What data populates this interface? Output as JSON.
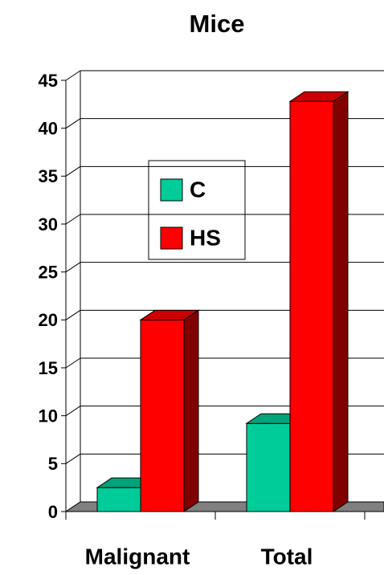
{
  "chart_data": {
    "type": "bar3d",
    "title": "Mice",
    "categories": [
      "Malignant",
      "Total"
    ],
    "series": [
      {
        "name": "C",
        "color": "#00cc99",
        "values": [
          2.5,
          9.2
        ]
      },
      {
        "name": "HS",
        "color": "#ff0000",
        "values": [
          20,
          42.8
        ]
      }
    ],
    "ylim": [
      0,
      45
    ],
    "yticks": [
      0,
      5,
      10,
      15,
      20,
      25,
      30,
      35,
      40,
      45
    ],
    "grid": true
  }
}
